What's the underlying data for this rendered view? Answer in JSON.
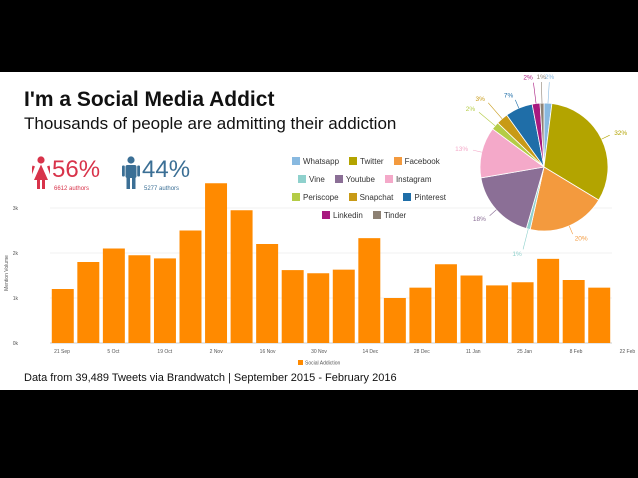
{
  "header": {
    "title": "I'm a Social Media Addict",
    "subtitle": "Thousands of people are admitting their addiction"
  },
  "stats": {
    "female": {
      "percent": "56%",
      "authors": "6612 authors"
    },
    "male": {
      "percent": "44%",
      "authors": "5277 authors"
    }
  },
  "footer": "Data from 39,489 Tweets via Brandwatch | September 2015 - February 2016",
  "legend": [
    {
      "label": "Whatsapp",
      "color": "#88b9e0"
    },
    {
      "label": "Twitter",
      "color": "#b3a400"
    },
    {
      "label": "Facebook",
      "color": "#f39a3e"
    },
    {
      "label": "Vine",
      "color": "#8fd1cd"
    },
    {
      "label": "Youtube",
      "color": "#8b6f96"
    },
    {
      "label": "Instagram",
      "color": "#f4a9c9"
    },
    {
      "label": "Periscope",
      "color": "#b4cc46"
    },
    {
      "label": "Snapchat",
      "color": "#c89a16"
    },
    {
      "label": "Pinterest",
      "color": "#1f6ea8"
    },
    {
      "label": "Linkedin",
      "color": "#a8197f"
    },
    {
      "label": "Tinder",
      "color": "#8d8173"
    }
  ],
  "chart_data": [
    {
      "type": "bar",
      "ylabel": "Mention Volume",
      "ylim": [
        0,
        4000
      ],
      "yticks": [
        "0k",
        "1k",
        "2k",
        "3k"
      ],
      "xticks": [
        "21 Sep",
        "5 Oct",
        "19 Oct",
        "2 Nov",
        "16 Nov",
        "30 Nov",
        "14 Dec",
        "28 Dec",
        "11 Jan",
        "25 Jan",
        "8 Feb",
        "22 Feb"
      ],
      "series": [
        {
          "name": "Social Addiction",
          "color": "#ff8a00",
          "values": [
            1200,
            1800,
            2100,
            1950,
            1880,
            2500,
            3550,
            2950,
            2200,
            1620,
            1550,
            1630,
            2330,
            1000,
            1230,
            1750,
            1500,
            1280,
            1350,
            1870,
            1400,
            1230
          ]
        }
      ],
      "grid": true,
      "legend": "bottom-center"
    },
    {
      "type": "pie",
      "slices": [
        {
          "label": "Whatsapp",
          "percent": 2,
          "value_label": "2%",
          "color": "#88b9e0"
        },
        {
          "label": "Twitter",
          "percent": 32,
          "value_label": "32%",
          "color": "#b3a400"
        },
        {
          "label": "Facebook",
          "percent": 20,
          "value_label": "20%",
          "color": "#f39a3e"
        },
        {
          "label": "Vine",
          "percent": 1,
          "value_label": "1%",
          "color": "#8fd1cd"
        },
        {
          "label": "Youtube",
          "percent": 18,
          "value_label": "18%",
          "color": "#8b6f96"
        },
        {
          "label": "Instagram",
          "percent": 13,
          "value_label": "13%",
          "color": "#f4a9c9"
        },
        {
          "label": "Periscope",
          "percent": 2,
          "value_label": "2%",
          "color": "#b4cc46"
        },
        {
          "label": "Snapchat",
          "percent": 3,
          "value_label": "3%",
          "color": "#c89a16"
        },
        {
          "label": "Pinterest",
          "percent": 7,
          "value_label": "7%",
          "color": "#1f6ea8"
        },
        {
          "label": "Linkedin",
          "percent": 2,
          "value_label": "2%",
          "color": "#a8197f"
        },
        {
          "label": "Tinder",
          "percent": 1,
          "value_label": "1%",
          "color": "#8d8173"
        }
      ]
    }
  ]
}
